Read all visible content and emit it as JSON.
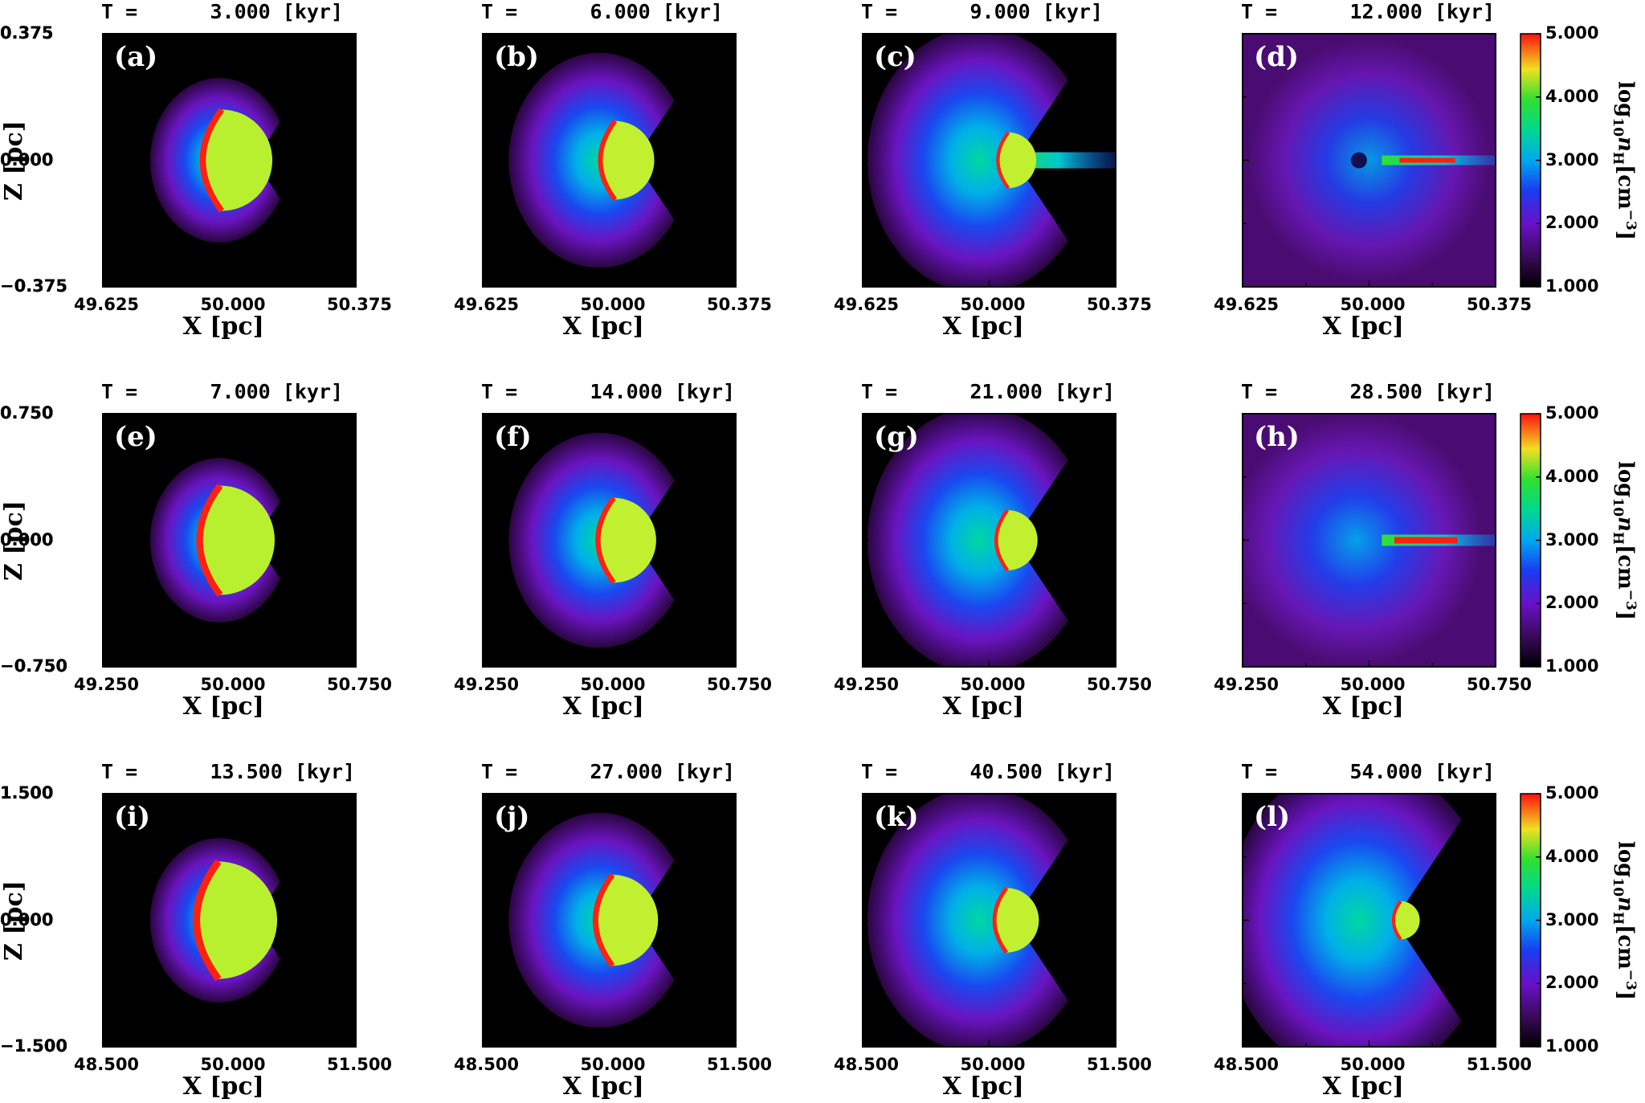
{
  "chart_data": {
    "type": "heatmap",
    "colorbar": {
      "label_parts": {
        "log": "log",
        "base": "10",
        "n": "n",
        "n_sub": "H",
        "unit": "[cm",
        "exp": "−3",
        "close": "]"
      },
      "ticks": [
        "5.000",
        "4.000",
        "3.000",
        "2.000",
        "1.000"
      ],
      "range": [
        1.0,
        5.0
      ],
      "colormap": "rainbow"
    },
    "title_prefix": "T =",
    "time_unit": "[kyr]",
    "xlabel": "X [pc]",
    "ylabel": "Z [pc]",
    "rows": [
      {
        "xticks": [
          "49.625",
          "50.000",
          "50.375"
        ],
        "yticks": [
          "0.375",
          "0.000",
          "−0.375"
        ],
        "xlim": [
          49.625,
          50.375
        ],
        "ylim": [
          -0.375,
          0.375
        ],
        "panels": [
          {
            "label": "(a)",
            "time": "3.000"
          },
          {
            "label": "(b)",
            "time": "6.000"
          },
          {
            "label": "(c)",
            "time": "9.000"
          },
          {
            "label": "(d)",
            "time": "12.000"
          }
        ]
      },
      {
        "xticks": [
          "49.250",
          "50.000",
          "50.750"
        ],
        "yticks": [
          "0.750",
          "0.000",
          "−0.750"
        ],
        "xlim": [
          49.25,
          50.75
        ],
        "ylim": [
          -0.75,
          0.75
        ],
        "panels": [
          {
            "label": "(e)",
            "time": "7.000"
          },
          {
            "label": "(f)",
            "time": "14.000"
          },
          {
            "label": "(g)",
            "time": "21.000"
          },
          {
            "label": "(h)",
            "time": "28.500"
          }
        ]
      },
      {
        "xticks": [
          "48.500",
          "50.000",
          "51.500"
        ],
        "yticks": [
          "1.500",
          "0.000",
          "−1.500"
        ],
        "xlim": [
          48.5,
          51.5
        ],
        "ylim": [
          -1.5,
          1.5
        ],
        "panels": [
          {
            "label": "(i)",
            "time": "13.500"
          },
          {
            "label": "(j)",
            "time": "27.000"
          },
          {
            "label": "(k)",
            "time": "40.500"
          },
          {
            "label": "(l)",
            "time": "54.000"
          }
        ]
      }
    ]
  }
}
